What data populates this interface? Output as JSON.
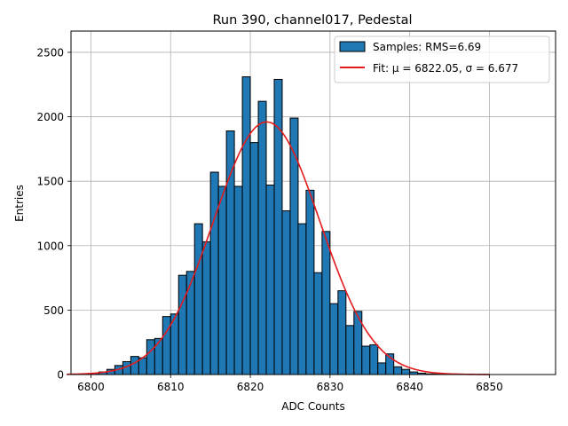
{
  "chart_data": {
    "type": "bar",
    "title": "Run 390, channel017, Pedestal",
    "xlabel": "ADC Counts",
    "ylabel": "Entries",
    "xlim": [
      6797.5,
      6858.3
    ],
    "ylim": [
      0,
      2665
    ],
    "xticks": [
      6800,
      6810,
      6820,
      6830,
      6840,
      6850
    ],
    "yticks": [
      0,
      500,
      1000,
      1500,
      2000,
      2500
    ],
    "grid": true,
    "legend_position": "top-right",
    "legend": [
      "Samples: RMS=6.69",
      "Fit: μ = 6822.05, σ = 6.677"
    ],
    "histogram": {
      "name": "Samples",
      "bin_width": 1,
      "bin_edges_start": 6797,
      "counts": [
        2,
        3,
        5,
        10,
        20,
        40,
        70,
        100,
        140,
        130,
        270,
        280,
        450,
        470,
        770,
        800,
        1170,
        1030,
        1570,
        1460,
        1890,
        1460,
        2310,
        1800,
        2120,
        1470,
        2290,
        1270,
        1990,
        1170,
        1430,
        790,
        1110,
        550,
        650,
        380,
        490,
        220,
        230,
        90,
        160,
        60,
        40,
        20,
        10,
        5,
        3,
        2,
        1
      ],
      "fill_color": "#1f77b4",
      "edge_color": "#000000"
    },
    "fit": {
      "name": "Fit",
      "mu": 6822.05,
      "sigma": 6.677,
      "amplitude": 1960,
      "x_range": [
        6797,
        6850
      ],
      "color": "#e41a1c"
    }
  }
}
